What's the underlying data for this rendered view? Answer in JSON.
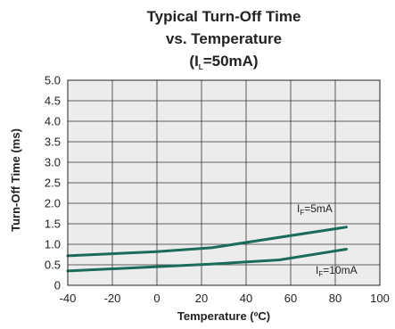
{
  "chart_data": {
    "type": "line",
    "title_lines": [
      "Typical Turn-Off Time",
      "vs. Temperature"
    ],
    "condition": {
      "prefix": "(I",
      "sub": "L",
      "suffix": "=50mA)"
    },
    "xlabel": "Temperature (ºC)",
    "ylabel": "Turn-Off Time (ms)",
    "xlim": [
      -40,
      100
    ],
    "ylim": [
      0,
      5.0
    ],
    "x_ticks": [
      "-40",
      "-20",
      "0",
      "20",
      "40",
      "60",
      "80",
      "100"
    ],
    "y_ticks": [
      "0",
      "0.5",
      "1.0",
      "1.5",
      "2.0",
      "2.5",
      "3.0",
      "3.5",
      "4.0",
      "4.5",
      "5.0"
    ],
    "grid": true,
    "line_color": "#1a6b5a",
    "series": [
      {
        "label": {
          "prefix": "I",
          "sub": "F",
          "suffix": "=5mA"
        },
        "x": [
          -40,
          0,
          25,
          85
        ],
        "y": [
          0.72,
          0.82,
          0.92,
          1.42
        ]
      },
      {
        "label": {
          "prefix": "I",
          "sub": "F",
          "suffix": "=10mA"
        },
        "x": [
          -40,
          25,
          55,
          85
        ],
        "y": [
          0.35,
          0.52,
          0.62,
          0.88
        ]
      }
    ]
  }
}
